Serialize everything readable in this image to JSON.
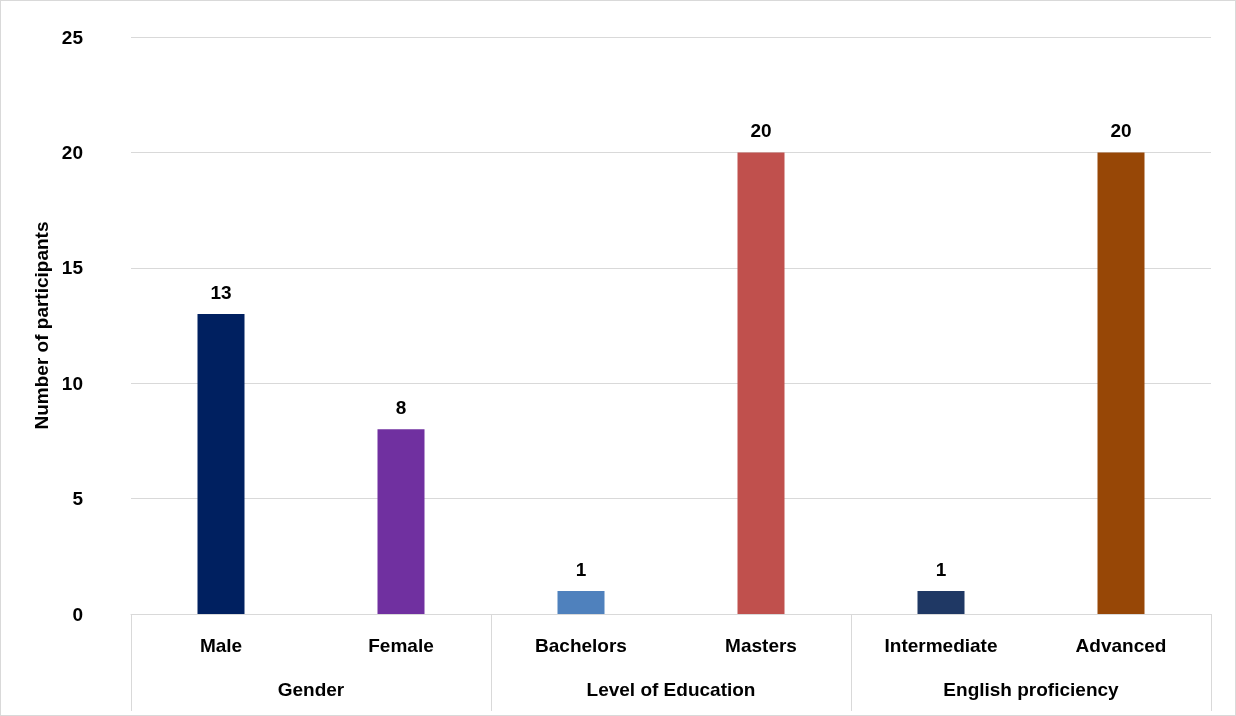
{
  "chart_data": {
    "type": "bar",
    "ylabel": "Number of participants",
    "categories": [
      "Male",
      "Female",
      "Bachelors",
      "Masters",
      "Intermediate",
      "Advanced"
    ],
    "values": [
      13,
      8,
      1,
      20,
      1,
      20
    ],
    "colors": [
      "#002060",
      "#7030a0",
      "#4f81bd",
      "#c0504d",
      "#1f3864",
      "#974706"
    ],
    "ylim": [
      0,
      25
    ],
    "yticks": [
      0,
      5,
      10,
      15,
      20,
      25
    ],
    "grid": "y",
    "data_labels": true,
    "annotations": [
      "Gender",
      "Level of Education",
      "English proficiency"
    ]
  }
}
